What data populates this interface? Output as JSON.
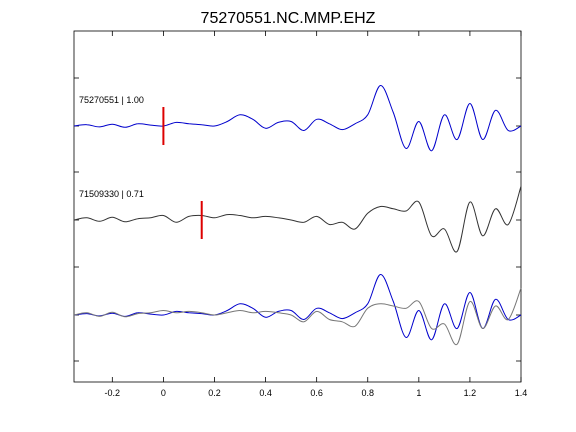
{
  "chart_data": {
    "type": "line",
    "title": "75270551.NC.MMP.EHZ",
    "xlabel": "",
    "ylabel": "",
    "xlim": [
      -0.35,
      1.4
    ],
    "x_ticks": [
      -0.2,
      0,
      0.2,
      0.4,
      0.6,
      0.8,
      1,
      1.2,
      1.4
    ],
    "x_tick_labels": [
      "-0.2",
      "0",
      "0.2",
      "0.4",
      "0.6",
      "0.8",
      "1",
      "1.2",
      "1.4"
    ],
    "y_tick_count": 7,
    "grid": false,
    "legend": "none",
    "colors": {
      "master": "#0000cc",
      "other": "#333333",
      "pick": "#dd0000"
    },
    "series": [
      {
        "label": "75270551 | 1.00",
        "group": "top",
        "color": "#0000cc",
        "pick_time": 0.0,
        "x": [
          -0.35,
          -0.3,
          -0.25,
          -0.2,
          -0.15,
          -0.1,
          -0.05,
          0,
          0.05,
          0.1,
          0.15,
          0.2,
          0.25,
          0.3,
          0.35,
          0.4,
          0.45,
          0.5,
          0.55,
          0.6,
          0.65,
          0.7,
          0.75,
          0.8,
          0.85,
          0.9,
          0.95,
          1.0,
          1.05,
          1.1,
          1.15,
          1.2,
          1.25,
          1.3,
          1.35,
          1.4
        ],
        "y": [
          0.0,
          0.03,
          -0.02,
          0.04,
          -0.03,
          0.05,
          0.02,
          0.0,
          0.08,
          0.05,
          0.03,
          0.0,
          0.1,
          0.25,
          0.15,
          -0.05,
          0.08,
          0.1,
          -0.1,
          0.15,
          0.05,
          -0.08,
          0.05,
          0.25,
          0.9,
          0.3,
          -0.5,
          0.1,
          -0.55,
          0.25,
          -0.3,
          0.5,
          -0.3,
          0.35,
          -0.1,
          0.0
        ]
      },
      {
        "label": "71509330 | 0.71",
        "group": "middle",
        "color": "#333333",
        "pick_time": 0.15,
        "x": [
          -0.35,
          -0.3,
          -0.25,
          -0.2,
          -0.15,
          -0.1,
          -0.05,
          0,
          0.05,
          0.1,
          0.15,
          0.2,
          0.25,
          0.3,
          0.35,
          0.4,
          0.45,
          0.5,
          0.55,
          0.6,
          0.65,
          0.7,
          0.75,
          0.8,
          0.85,
          0.9,
          0.95,
          1.0,
          1.05,
          1.1,
          1.15,
          1.2,
          1.25,
          1.3,
          1.35,
          1.4
        ],
        "y": [
          0.0,
          0.05,
          -0.03,
          0.06,
          -0.04,
          0.03,
          0.05,
          0.1,
          -0.05,
          0.08,
          0.1,
          0.05,
          0.12,
          0.1,
          0.05,
          0.08,
          0.05,
          0.0,
          -0.05,
          0.08,
          -0.1,
          -0.05,
          -0.2,
          0.15,
          0.3,
          0.25,
          0.2,
          0.4,
          -0.35,
          -0.2,
          -0.7,
          0.4,
          -0.35,
          0.25,
          -0.1,
          0.75
        ]
      },
      {
        "label": "",
        "group": "overlay",
        "color": "#0000cc",
        "pick_time": null,
        "x": [
          -0.35,
          -0.3,
          -0.25,
          -0.2,
          -0.15,
          -0.1,
          -0.05,
          0,
          0.05,
          0.1,
          0.15,
          0.2,
          0.25,
          0.3,
          0.35,
          0.4,
          0.45,
          0.5,
          0.55,
          0.6,
          0.65,
          0.7,
          0.75,
          0.8,
          0.85,
          0.9,
          0.95,
          1.0,
          1.05,
          1.1,
          1.15,
          1.2,
          1.25,
          1.3,
          1.35,
          1.4
        ],
        "y": [
          0.0,
          0.03,
          -0.02,
          0.04,
          -0.03,
          0.05,
          0.02,
          0.0,
          0.08,
          0.05,
          0.03,
          0.0,
          0.1,
          0.25,
          0.15,
          -0.05,
          0.08,
          0.1,
          -0.1,
          0.15,
          0.05,
          -0.08,
          0.05,
          0.25,
          0.9,
          0.3,
          -0.5,
          0.1,
          -0.55,
          0.25,
          -0.3,
          0.5,
          -0.3,
          0.35,
          -0.1,
          0.0
        ]
      },
      {
        "label": "",
        "group": "overlay",
        "color": "#777777",
        "pick_time": null,
        "x": [
          -0.35,
          -0.3,
          -0.25,
          -0.2,
          -0.15,
          -0.1,
          -0.05,
          0,
          0.05,
          0.1,
          0.15,
          0.2,
          0.25,
          0.3,
          0.35,
          0.4,
          0.45,
          0.5,
          0.55,
          0.6,
          0.65,
          0.7,
          0.75,
          0.8,
          0.85,
          0.9,
          0.95,
          1.0,
          1.05,
          1.1,
          1.15,
          1.2,
          1.25,
          1.3,
          1.35,
          1.4
        ],
        "y": [
          0.0,
          0.05,
          -0.03,
          0.06,
          -0.04,
          0.03,
          0.05,
          0.1,
          0.05,
          0.08,
          0.05,
          0.0,
          0.05,
          0.1,
          0.05,
          0.08,
          0.05,
          0.0,
          -0.15,
          0.08,
          -0.1,
          -0.15,
          -0.25,
          0.15,
          0.25,
          0.2,
          0.15,
          0.3,
          -0.3,
          -0.2,
          -0.65,
          0.3,
          -0.3,
          0.2,
          -0.1,
          0.6
        ]
      }
    ]
  }
}
